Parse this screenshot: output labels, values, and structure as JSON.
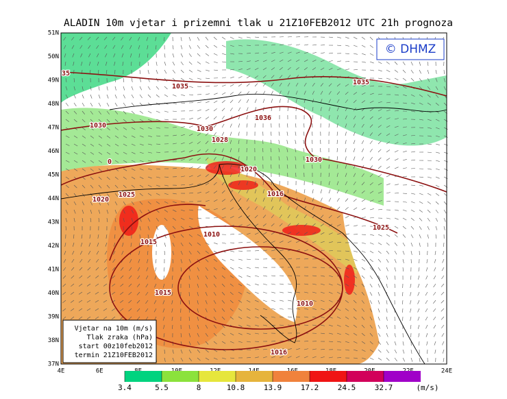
{
  "header": {
    "title": "ALADIN 10m vjetar i prizemni tlak u 21Z10FEB2012 UTC 21h prognoza",
    "logo": "© DHMZ"
  },
  "axes": {
    "lat_labels": [
      "51N",
      "50N",
      "49N",
      "48N",
      "47N",
      "46N",
      "45N",
      "44N",
      "43N",
      "42N",
      "41N",
      "40N",
      "39N",
      "38N",
      "37N"
    ],
    "lon_labels": [
      "4E",
      "6E",
      "8E",
      "10E",
      "12E",
      "14E",
      "16E",
      "18E",
      "20E",
      "22E",
      "24E"
    ]
  },
  "isobar_labels": [
    "35",
    "1035",
    "1035",
    "1036",
    "1030",
    "1030",
    "1028",
    "0",
    "1020",
    "1030",
    "1016",
    "1020",
    "1025",
    "1025",
    "1010",
    "1015",
    "1015",
    "1010",
    "1016"
  ],
  "info_box": {
    "lines": [
      "Vjetar na 10m (m/s)",
      "Tlak zraka (hPa)",
      "start 00z10feb2012",
      "termin 21Z10FEB2012"
    ]
  },
  "legend": {
    "thresholds": [
      3.4,
      5.5,
      8,
      10.8,
      13.9,
      17.2,
      24.5,
      32.7
    ],
    "unit": "(m/s)",
    "colors": [
      "#00d37f",
      "#8be23c",
      "#e6e63c",
      "#e6b43c",
      "#f0823c",
      "#f01414",
      "#d2005a",
      "#a000c8"
    ]
  }
}
